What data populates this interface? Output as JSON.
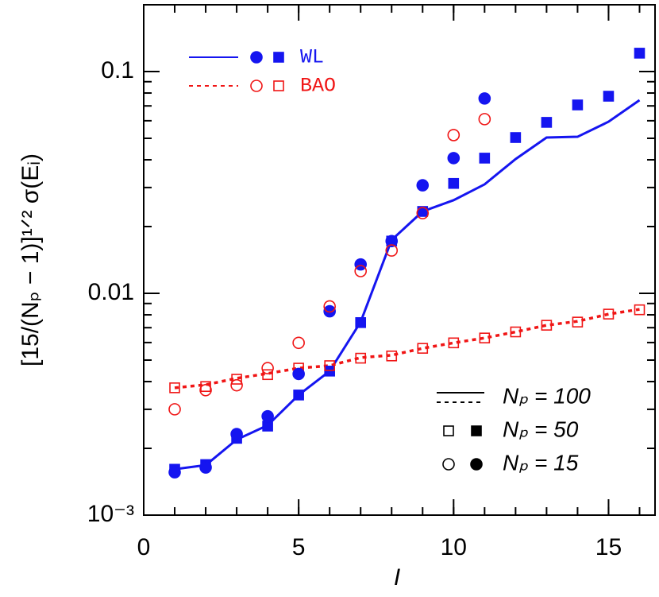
{
  "chart_data": {
    "type": "line",
    "x_label": "I",
    "y_label": "[15/(Nₚ − 1)]¹ᐟ² σ(Eᵢ)",
    "x": [
      1,
      2,
      3,
      4,
      5,
      6,
      7,
      8,
      9,
      10,
      11,
      12,
      13,
      14,
      15,
      16
    ],
    "xlim": [
      0,
      16.5
    ],
    "xticks": [
      0,
      5,
      10,
      15
    ],
    "ylim": [
      0.001,
      0.2
    ],
    "yticks": [
      {
        "value": 0.001,
        "label": "10⁻³"
      },
      {
        "value": 0.01,
        "label": "0.01"
      },
      {
        "value": 0.1,
        "label": "0.1"
      }
    ],
    "log_y": true,
    "probes": [
      {
        "name": "WL",
        "color": "#1515f0",
        "filled": true,
        "dashed": false
      },
      {
        "name": "BAO",
        "color": "#f01515",
        "filled": false,
        "dashed": true
      }
    ],
    "sets": [
      {
        "name": "Nₚ = 100",
        "marker": "line",
        "values": [
          [
            0.00161,
            0.00168,
            0.00219,
            0.00254,
            0.00348,
            0.00446,
            0.00743,
            0.0174,
            0.0234,
            0.0263,
            0.031,
            0.0403,
            0.0504,
            0.0508,
            0.0594,
            0.0743
          ],
          [
            0.00375,
            0.00387,
            0.00414,
            0.00435,
            0.0046,
            0.00472,
            0.00513,
            0.00526,
            0.00565,
            0.00598,
            0.00629,
            0.0067,
            0.00718,
            0.00748,
            0.00806,
            0.00847
          ]
        ]
      },
      {
        "name": "Nₚ = 50",
        "marker": "square",
        "values": [
          [
            0.00161,
            0.00169,
            0.00222,
            0.00252,
            0.00348,
            0.00446,
            0.00738,
            0.0172,
            0.0234,
            0.0313,
            0.0407,
            0.0504,
            0.059,
            0.0707,
            0.0774,
            0.121
          ],
          [
            0.00375,
            0.0038,
            0.0041,
            0.0043,
            0.0046,
            0.00472,
            0.0051,
            0.00522,
            0.00565,
            0.00598,
            0.00629,
            0.0067,
            0.00718,
            0.00742,
            0.00806,
            0.00843
          ]
        ]
      },
      {
        "name": "Nₚ = 15",
        "marker": "circle",
        "values": [
          [
            0.00156,
            0.00164,
            0.00232,
            0.00279,
            0.00433,
            0.0083,
            0.0135,
            0.0172,
            0.0307,
            0.0407,
            0.0756,
            null,
            null,
            null,
            null,
            null
          ],
          [
            0.003,
            0.00366,
            0.00385,
            0.0046,
            0.00598,
            0.00873,
            0.0126,
            0.0156,
            0.023,
            0.0517,
            0.061,
            null,
            null,
            null,
            null,
            null
          ]
        ]
      }
    ]
  }
}
